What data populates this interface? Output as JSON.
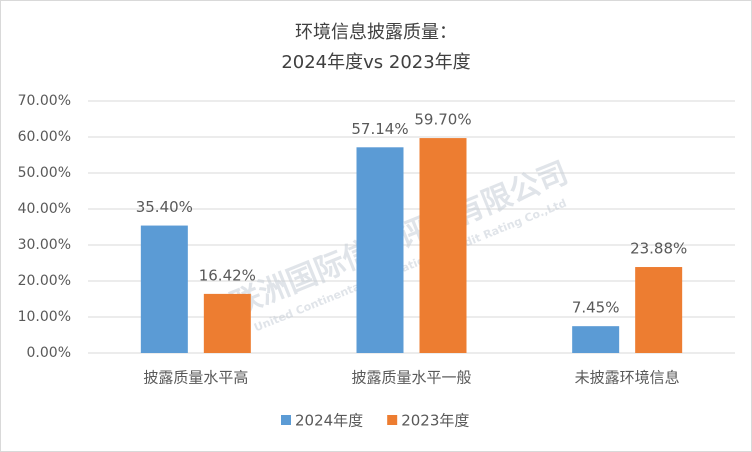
{
  "chart_data": {
    "type": "bar",
    "title": "环境信息披露质量：",
    "subtitle": "2024年度vs 2023年度",
    "categories": [
      "披露质量水平高",
      "披露质量水平一般",
      "未披露环境信息"
    ],
    "series": [
      {
        "name": "2024年度",
        "color": "#5b9bd5",
        "values": [
          35.4,
          57.14,
          7.45
        ],
        "value_labels": [
          "35.40%",
          "57.14%",
          "7.45%"
        ]
      },
      {
        "name": "2023年度",
        "color": "#ed7d31",
        "values": [
          16.42,
          59.7,
          23.88
        ],
        "value_labels": [
          "16.42%",
          "59.70%",
          "23.88%"
        ]
      }
    ],
    "ylim": [
      0,
      70
    ],
    "yticks": [
      {
        "value": 0,
        "label": "0.00%"
      },
      {
        "value": 10,
        "label": "10.00%"
      },
      {
        "value": 20,
        "label": "20.00%"
      },
      {
        "value": 30,
        "label": "30.00%"
      },
      {
        "value": 40,
        "label": "40.00%"
      },
      {
        "value": 50,
        "label": "50.00%"
      },
      {
        "value": 60,
        "label": "60.00%"
      },
      {
        "value": 70,
        "label": "70.00%"
      }
    ],
    "grid": true,
    "legend": "bottom",
    "watermark": {
      "name": "联洲国际信用评级有限公司",
      "english": "United Continental International Credit Rating Co.,Ltd"
    }
  }
}
